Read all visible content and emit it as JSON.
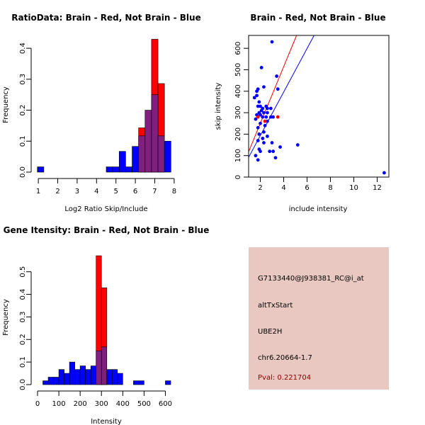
{
  "colors": {
    "brain": "#ff0000",
    "not_brain": "#0000ff",
    "overlap": "#7f1f7f",
    "info_bg": "#e8c8c0",
    "pval": "#8b0000"
  },
  "info_panel": {
    "probe_id": "G7133440@J938381_RC@i_at",
    "event_type": "altTxStart",
    "gene": "UBE2H",
    "location": "chr6.20664-1.7",
    "pval": "Pval: 0.221704"
  },
  "chart_data": [
    {
      "id": "ratio",
      "type": "bar",
      "title": "RatioData: Brain - Red, Not Brain - Blue",
      "xlabel": "Log2 Ratio Skip/Include",
      "ylabel": "Frequency",
      "xlim": [
        0.85,
        8.15
      ],
      "ylim": [
        0,
        0.43
      ],
      "xticks": [
        1,
        2,
        3,
        4,
        5,
        6,
        7,
        8
      ],
      "yticks": [
        0.0,
        0.1,
        0.2,
        0.3,
        0.4
      ],
      "bin_width": 0.3333,
      "series": [
        {
          "name": "Not Brain",
          "color": "blue",
          "bins": [
            {
              "x0": 0.95,
              "v": 0.017
            },
            {
              "x0": 4.5,
              "v": 0.017
            },
            {
              "x0": 4.833,
              "v": 0.017
            },
            {
              "x0": 5.167,
              "v": 0.067
            },
            {
              "x0": 5.5,
              "v": 0.017
            },
            {
              "x0": 5.833,
              "v": 0.083
            },
            {
              "x0": 6.167,
              "v": 0.117
            },
            {
              "x0": 6.5,
              "v": 0.2
            },
            {
              "x0": 6.833,
              "v": 0.25
            },
            {
              "x0": 7.167,
              "v": 0.117
            },
            {
              "x0": 7.5,
              "v": 0.1
            }
          ]
        },
        {
          "name": "Brain",
          "color": "red",
          "bins": [
            {
              "x0": 6.167,
              "v": 0.143
            },
            {
              "x0": 6.5,
              "v": 0.143
            },
            {
              "x0": 6.833,
              "v": 0.429
            },
            {
              "x0": 7.167,
              "v": 0.286
            }
          ]
        }
      ]
    },
    {
      "id": "scatter",
      "type": "scatter",
      "title": "Brain - Red, Not Brain - Blue",
      "xlabel": "include intensity",
      "ylabel": "skip intensity",
      "xlim": [
        1.0,
        13.0
      ],
      "ylim": [
        0,
        660
      ],
      "xticks": [
        2,
        4,
        6,
        8,
        10,
        12
      ],
      "yticks": [
        0,
        100,
        200,
        300,
        400,
        500,
        600
      ],
      "series": [
        {
          "name": "Not Brain",
          "color": "blue",
          "points": [
            [
              1.5,
              370
            ],
            [
              1.7,
              400
            ],
            [
              1.8,
              410
            ],
            [
              1.7,
              380
            ],
            [
              1.9,
              350
            ],
            [
              2.0,
              330
            ],
            [
              1.8,
              330
            ],
            [
              2.2,
              320
            ],
            [
              2.5,
              330
            ],
            [
              2.6,
              320
            ],
            [
              2.9,
              320
            ],
            [
              2.1,
              310
            ],
            [
              1.9,
              300
            ],
            [
              2.3,
              300
            ],
            [
              2.6,
              300
            ],
            [
              2.0,
              290
            ],
            [
              1.7,
              290
            ],
            [
              2.2,
              280
            ],
            [
              2.5,
              280
            ],
            [
              2.9,
              280
            ],
            [
              3.1,
              280
            ],
            [
              1.6,
              270
            ],
            [
              2.6,
              260
            ],
            [
              2.0,
              250
            ],
            [
              2.4,
              240
            ],
            [
              1.8,
              230
            ],
            [
              2.3,
              210
            ],
            [
              1.9,
              200
            ],
            [
              2.6,
              190
            ],
            [
              2.2,
              180
            ],
            [
              1.8,
              170
            ],
            [
              3.0,
              160
            ],
            [
              2.3,
              160
            ],
            [
              3.7,
              140
            ],
            [
              1.9,
              130
            ],
            [
              2.0,
              120
            ],
            [
              2.8,
              120
            ],
            [
              3.1,
              120
            ],
            [
              1.6,
              100
            ],
            [
              3.3,
              90
            ],
            [
              1.8,
              80
            ],
            [
              2.1,
              510
            ],
            [
              2.3,
              420
            ],
            [
              3.0,
              630
            ],
            [
              3.4,
              470
            ],
            [
              3.5,
              410
            ],
            [
              5.2,
              150
            ],
            [
              12.6,
              20
            ]
          ]
        },
        {
          "name": "Brain",
          "color": "red",
          "points": [
            [
              1.8,
              280
            ],
            [
              3.5,
              280
            ],
            [
              2.4,
              260
            ]
          ]
        }
      ],
      "fit_lines": [
        {
          "name": "Brain",
          "color": "red",
          "x": [
            1.0,
            5.1
          ],
          "y": [
            118,
            660
          ]
        },
        {
          "name": "Not Brain",
          "color": "blue",
          "x": [
            1.0,
            6.6
          ],
          "y": [
            92,
            660
          ]
        }
      ]
    },
    {
      "id": "intensity",
      "type": "bar",
      "title": "Gene Itensity: Brain - Red, Not Brain - Blue",
      "xlabel": "Intensity",
      "ylabel": "Frequency",
      "xlim": [
        -10,
        655
      ],
      "ylim": [
        0,
        0.59
      ],
      "xticks": [
        0,
        100,
        200,
        300,
        400,
        500,
        600
      ],
      "yticks": [
        0.0,
        0.1,
        0.2,
        0.3,
        0.4,
        0.5
      ],
      "bin_width": 25,
      "series": [
        {
          "name": "Not Brain",
          "color": "blue",
          "bins": [
            {
              "x0": 25,
              "v": 0.017
            },
            {
              "x0": 50,
              "v": 0.033
            },
            {
              "x0": 75,
              "v": 0.033
            },
            {
              "x0": 100,
              "v": 0.067
            },
            {
              "x0": 125,
              "v": 0.05
            },
            {
              "x0": 150,
              "v": 0.1
            },
            {
              "x0": 175,
              "v": 0.067
            },
            {
              "x0": 200,
              "v": 0.083
            },
            {
              "x0": 225,
              "v": 0.067
            },
            {
              "x0": 250,
              "v": 0.083
            },
            {
              "x0": 275,
              "v": 0.15
            },
            {
              "x0": 300,
              "v": 0.167
            },
            {
              "x0": 325,
              "v": 0.067
            },
            {
              "x0": 350,
              "v": 0.067
            },
            {
              "x0": 375,
              "v": 0.05
            },
            {
              "x0": 450,
              "v": 0.017
            },
            {
              "x0": 475,
              "v": 0.017
            },
            {
              "x0": 600,
              "v": 0.017
            }
          ]
        },
        {
          "name": "Brain",
          "color": "red",
          "bins": [
            {
              "x0": 275,
              "v": 0.571
            },
            {
              "x0": 300,
              "v": 0.429
            }
          ]
        }
      ]
    }
  ]
}
